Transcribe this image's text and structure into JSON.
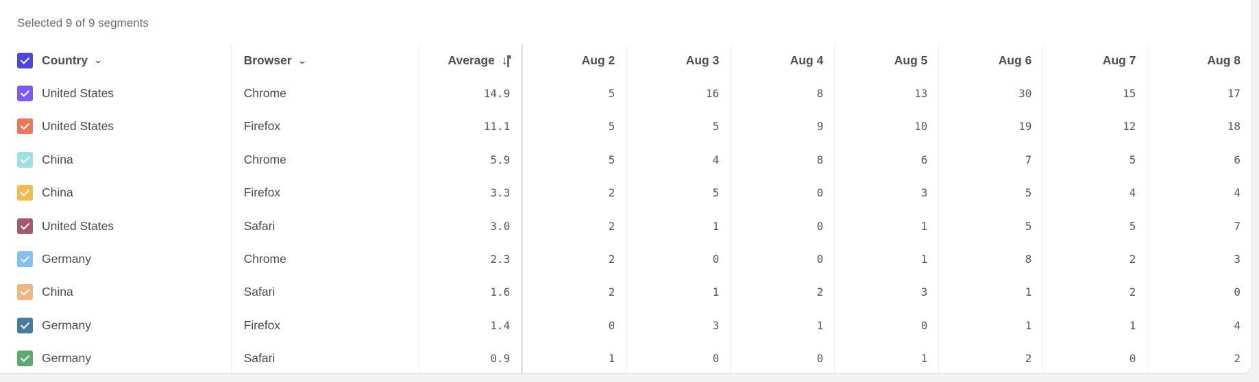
{
  "summary": "Selected 9 of 9 segments",
  "header": {
    "country": "Country",
    "country_checkbox_color": "#4f46d9",
    "browser": "Browser",
    "average": "Average",
    "sort_icon": "sort-descending-icon",
    "dates": [
      "Aug 2",
      "Aug 3",
      "Aug 4",
      "Aug 5",
      "Aug 6",
      "Aug 7",
      "Aug 8"
    ]
  },
  "rows": [
    {
      "country": "United States",
      "browser": "Chrome",
      "average": "14.9",
      "color": "#7a5cf5",
      "values": [
        "5",
        "16",
        "8",
        "13",
        "30",
        "15",
        "17"
      ]
    },
    {
      "country": "United States",
      "browser": "Firefox",
      "average": "11.1",
      "color": "#e8795c",
      "values": [
        "5",
        "5",
        "9",
        "10",
        "19",
        "12",
        "18"
      ]
    },
    {
      "country": "China",
      "browser": "Chrome",
      "average": "5.9",
      "color": "#9ee0dd",
      "values": [
        "5",
        "4",
        "8",
        "6",
        "7",
        "5",
        "6"
      ]
    },
    {
      "country": "China",
      "browser": "Firefox",
      "average": "3.3",
      "color": "#f0bd55",
      "values": [
        "2",
        "5",
        "0",
        "3",
        "5",
        "4",
        "4"
      ]
    },
    {
      "country": "United States",
      "browser": "Safari",
      "average": "3.0",
      "color": "#a35a6a",
      "values": [
        "2",
        "1",
        "0",
        "1",
        "5",
        "5",
        "7"
      ]
    },
    {
      "country": "Germany",
      "browser": "Chrome",
      "average": "2.3",
      "color": "#86c0f2",
      "values": [
        "2",
        "0",
        "0",
        "1",
        "8",
        "2",
        "3"
      ]
    },
    {
      "country": "China",
      "browser": "Safari",
      "average": "1.6",
      "color": "#f0b585",
      "values": [
        "2",
        "1",
        "2",
        "3",
        "1",
        "2",
        "0"
      ]
    },
    {
      "country": "Germany",
      "browser": "Firefox",
      "average": "1.4",
      "color": "#4a7b9e",
      "values": [
        "0",
        "3",
        "1",
        "0",
        "1",
        "1",
        "4"
      ]
    },
    {
      "country": "Germany",
      "browser": "Safari",
      "average": "0.9",
      "color": "#5fa874",
      "values": [
        "1",
        "0",
        "0",
        "1",
        "2",
        "0",
        "2"
      ]
    }
  ]
}
